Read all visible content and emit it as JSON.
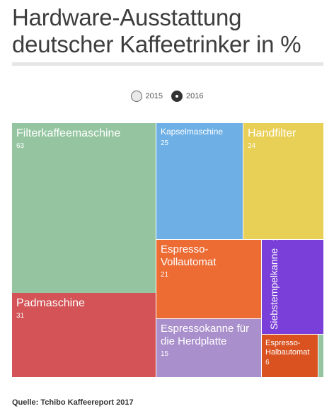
{
  "title": "Hardware-Ausstattung deutscher Kaffeetrinker in %",
  "legend": [
    {
      "label": "2015",
      "selected": false
    },
    {
      "label": "2016",
      "selected": true
    }
  ],
  "source": "Quelle: Tchibo Kaffeereport 2017",
  "chart_data": {
    "type": "treemap",
    "year": "2016",
    "items": [
      {
        "label": "Filterkaffeemaschine",
        "value": 63,
        "color": "#94c5a0"
      },
      {
        "label": "Padmaschine",
        "value": 31,
        "color": "#d35356"
      },
      {
        "label": "Kapselmaschine",
        "value": 25,
        "color": "#6eb0e6"
      },
      {
        "label": "Handfilter",
        "value": 24,
        "color": "#e8cf55"
      },
      {
        "label": "Espresso-Vollautomat",
        "value": 21,
        "color": "#ec6c34"
      },
      {
        "label": "Espressokanne für die Herdplatte",
        "value": 15,
        "color": "#a98fcb"
      },
      {
        "label": "Siebstempelkanne",
        "value": 15,
        "color": "#7a3fd8"
      },
      {
        "label": "Espresso-Halbautomat",
        "value": 6,
        "color": "#d9521f"
      },
      {
        "label": "",
        "value": null,
        "color": "#94c5a0"
      }
    ]
  }
}
